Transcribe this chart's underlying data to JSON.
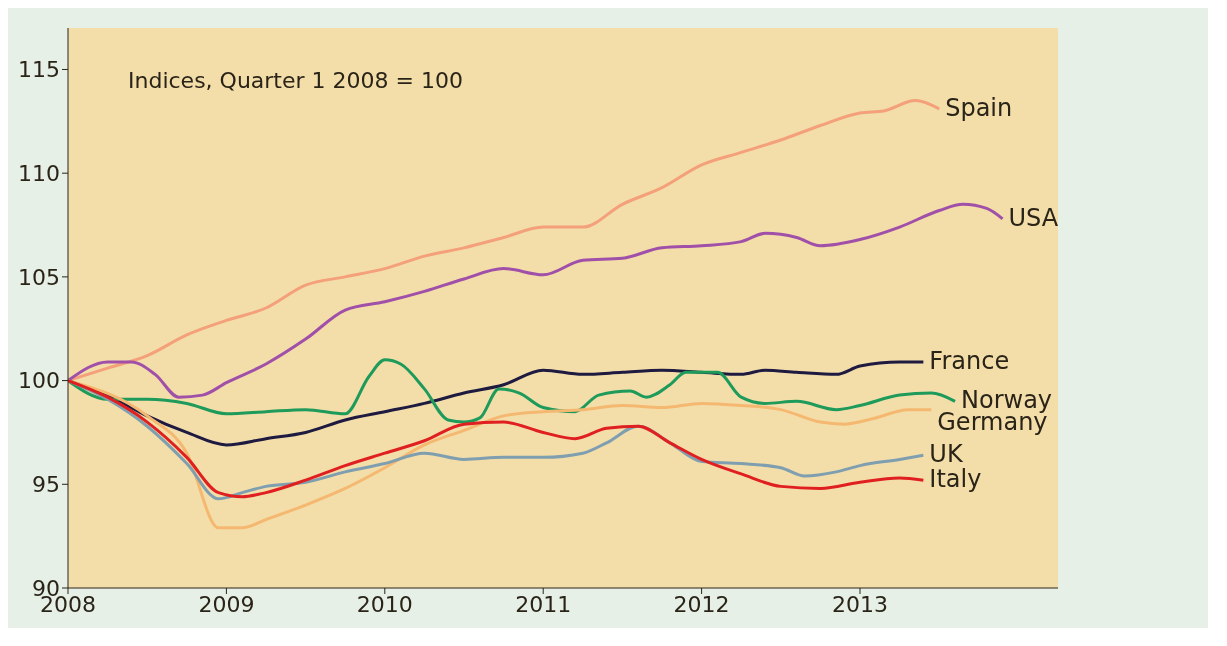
{
  "chart_data": {
    "type": "line",
    "annotations": [
      "Indices, Quarter 1 2008 = 100"
    ],
    "xlim": [
      2008,
      2014.25
    ],
    "xticks": [
      2008,
      2009,
      2010,
      2011,
      2012,
      2013
    ],
    "ylim": [
      90,
      117
    ],
    "yticks": [
      90,
      95,
      100,
      105,
      110,
      115
    ],
    "marker": "none",
    "line_style": "solid",
    "series": [
      {
        "name": "Spain",
        "color": "#f4a07a",
        "x": [
          2008,
          2008.25,
          2008.5,
          2008.75,
          2009,
          2009.25,
          2009.5,
          2009.75,
          2010,
          2010.25,
          2010.5,
          2010.75,
          2011,
          2011.25,
          2011.5,
          2011.75,
          2012,
          2012.25,
          2012.5,
          2012.75,
          2013,
          2013.15,
          2013.35,
          2013.5
        ],
        "values": [
          100,
          100.6,
          101.2,
          102.2,
          102.9,
          103.5,
          104.6,
          105.0,
          105.4,
          106.0,
          106.4,
          106.9,
          107.4,
          107.4,
          108.5,
          109.3,
          110.4,
          111.0,
          111.6,
          112.3,
          112.9,
          113.0,
          113.5,
          113.1
        ]
      },
      {
        "name": "USA",
        "color": "#a050a8",
        "x": [
          2008,
          2008.25,
          2008.4,
          2008.55,
          2008.7,
          2008.85,
          2009,
          2009.25,
          2009.5,
          2009.75,
          2010,
          2010.25,
          2010.5,
          2010.75,
          2011,
          2011.25,
          2011.5,
          2011.75,
          2012,
          2012.25,
          2012.4,
          2012.6,
          2012.75,
          2013,
          2013.25,
          2013.5,
          2013.65,
          2013.8,
          2013.9
        ],
        "values": [
          100,
          100.9,
          100.9,
          100.3,
          99.2,
          99.3,
          99.9,
          100.8,
          102.0,
          103.4,
          103.8,
          104.3,
          104.9,
          105.4,
          105.1,
          105.8,
          105.9,
          106.4,
          106.5,
          106.7,
          107.1,
          106.9,
          106.5,
          106.8,
          107.4,
          108.2,
          108.5,
          108.3,
          107.8
        ]
      },
      {
        "name": "France",
        "color": "#1e1a40",
        "x": [
          2008,
          2008.25,
          2008.5,
          2008.75,
          2009,
          2009.25,
          2009.5,
          2009.75,
          2010,
          2010.25,
          2010.5,
          2010.75,
          2011,
          2011.25,
          2011.5,
          2011.75,
          2012,
          2012.25,
          2012.4,
          2012.6,
          2012.85,
          2013,
          2013.25,
          2013.4
        ],
        "values": [
          100,
          99.3,
          98.3,
          97.5,
          96.9,
          97.2,
          97.5,
          98.1,
          98.5,
          98.9,
          99.4,
          99.8,
          100.5,
          100.3,
          100.4,
          100.5,
          100.4,
          100.3,
          100.5,
          100.4,
          100.3,
          100.7,
          100.9,
          100.9
        ]
      },
      {
        "name": "Norway",
        "color": "#1e9a5a",
        "x": [
          2008,
          2008.25,
          2008.5,
          2008.75,
          2009,
          2009.25,
          2009.5,
          2009.75,
          2009.9,
          2010,
          2010.1,
          2010.25,
          2010.4,
          2010.5,
          2010.6,
          2010.72,
          2010.85,
          2011,
          2011.2,
          2011.35,
          2011.55,
          2011.65,
          2011.8,
          2011.9,
          2012.1,
          2012.25,
          2012.4,
          2012.6,
          2012.85,
          2013,
          2013.25,
          2013.45,
          2013.6
        ],
        "values": [
          100,
          99.1,
          99.1,
          98.9,
          98.4,
          98.5,
          98.6,
          98.4,
          100.2,
          101.0,
          100.8,
          99.6,
          98.1,
          98.0,
          98.2,
          99.6,
          99.4,
          98.7,
          98.5,
          99.3,
          99.5,
          99.2,
          99.8,
          100.4,
          100.4,
          99.2,
          98.9,
          99.0,
          98.6,
          98.8,
          99.3,
          99.4,
          99.0
        ]
      },
      {
        "name": "Germany",
        "color": "#f5b870",
        "x": [
          2008,
          2008.5,
          2008.75,
          2008.95,
          2009.1,
          2009.25,
          2009.5,
          2009.75,
          2010,
          2010.25,
          2010.5,
          2010.75,
          2011,
          2011.25,
          2011.5,
          2011.75,
          2012,
          2012.25,
          2012.5,
          2012.75,
          2012.9,
          2013.1,
          2013.3,
          2013.45
        ],
        "values": [
          100,
          98.3,
          96.5,
          92.9,
          92.9,
          93.3,
          94.0,
          94.8,
          95.8,
          96.9,
          97.6,
          98.3,
          98.5,
          98.6,
          98.8,
          98.7,
          98.9,
          98.8,
          98.6,
          98.0,
          97.9,
          98.2,
          98.6,
          98.6
        ]
      },
      {
        "name": "UK",
        "color": "#7f9fb0",
        "x": [
          2008,
          2008.25,
          2008.5,
          2008.75,
          2008.95,
          2009.1,
          2009.25,
          2009.5,
          2009.75,
          2010,
          2010.25,
          2010.5,
          2010.75,
          2011,
          2011.25,
          2011.4,
          2011.6,
          2011.8,
          2012,
          2012.25,
          2012.5,
          2012.65,
          2012.85,
          2013,
          2013.25,
          2013.4
        ],
        "values": [
          100,
          99.1,
          97.8,
          96.0,
          94.3,
          94.6,
          94.9,
          95.1,
          95.6,
          96.0,
          96.5,
          96.2,
          96.3,
          96.3,
          96.5,
          97.0,
          97.8,
          97.0,
          96.1,
          96.0,
          95.8,
          95.4,
          95.6,
          95.9,
          96.2,
          96.4
        ]
      },
      {
        "name": "Italy",
        "color": "#e02020",
        "x": [
          2008,
          2008.25,
          2008.5,
          2008.75,
          2008.95,
          2009.1,
          2009.25,
          2009.5,
          2009.75,
          2010,
          2010.25,
          2010.5,
          2010.75,
          2011,
          2011.2,
          2011.4,
          2011.6,
          2011.8,
          2012,
          2012.25,
          2012.5,
          2012.75,
          2013,
          2013.25,
          2013.4
        ],
        "values": [
          100,
          99.2,
          98.0,
          96.3,
          94.6,
          94.4,
          94.6,
          95.2,
          95.9,
          96.5,
          97.1,
          97.9,
          98.0,
          97.5,
          97.2,
          97.7,
          97.8,
          97.0,
          96.2,
          95.5,
          94.9,
          94.8,
          95.1,
          95.3,
          95.2
        ]
      }
    ]
  }
}
